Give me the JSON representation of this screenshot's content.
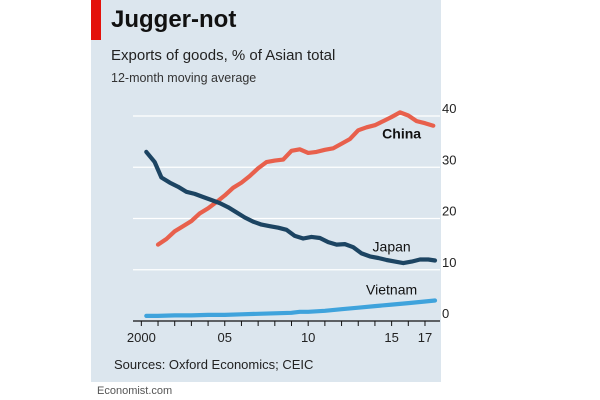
{
  "header": {
    "title": "Jugger-not",
    "subtitle": "Exports of goods, % of Asian total",
    "note": "12-month moving average"
  },
  "footer": {
    "source": "Sources: Oxford Economics; CEIC",
    "credit": "Economist.com"
  },
  "colors": {
    "background": "#dce6ee",
    "china": "#e8604c",
    "japan": "#1c4462",
    "vietnam": "#3fa3dc",
    "accent": "#e3120b"
  },
  "chart_data": {
    "type": "line",
    "title": "Jugger-not",
    "subtitle": "Exports of goods, % of Asian total",
    "xlabel": "",
    "ylabel": "",
    "xlim": [
      1999.5,
      2017.9
    ],
    "ylim": [
      0,
      40
    ],
    "grid": true,
    "y_axis_side": "right",
    "y_ticks": [
      0,
      10,
      20,
      30,
      40
    ],
    "x_ticks": [
      {
        "value": 2000,
        "label": "2000"
      },
      {
        "value": 2005,
        "label": "05"
      },
      {
        "value": 2010,
        "label": "10"
      },
      {
        "value": 2015,
        "label": "15"
      },
      {
        "value": 2017,
        "label": "17"
      }
    ],
    "series": [
      {
        "name": "China",
        "color": "#e8604c",
        "bold_label": true,
        "label_anchor": 2015.6,
        "x": [
          2001.0,
          2001.5,
          2002,
          2002.5,
          2003,
          2003.5,
          2004,
          2004.5,
          2005,
          2005.5,
          2006,
          2006.5,
          2007,
          2007.5,
          2008,
          2008.5,
          2009,
          2009.5,
          2010,
          2010.5,
          2011,
          2011.5,
          2012,
          2012.5,
          2013,
          2013.5,
          2014,
          2014.5,
          2015,
          2015.5,
          2016,
          2016.5,
          2017,
          2017.5
        ],
        "values": [
          14.9,
          16.0,
          17.5,
          18.5,
          19.5,
          21.0,
          22.0,
          23.2,
          24.5,
          26.0,
          27.0,
          28.3,
          29.8,
          31.0,
          31.3,
          31.5,
          33.2,
          33.5,
          32.8,
          33.0,
          33.4,
          33.7,
          34.6,
          35.5,
          37.2,
          37.8,
          38.2,
          39.0,
          39.8,
          40.7,
          40.1,
          39.0,
          38.6,
          38.1
        ]
      },
      {
        "name": "Japan",
        "color": "#1c4462",
        "bold_label": false,
        "label_anchor": 2015.0,
        "x": [
          2000.3,
          2000.8,
          2001.2,
          2001.7,
          2002.2,
          2002.7,
          2003.2,
          2003.7,
          2004.2,
          2004.7,
          2005.2,
          2005.7,
          2006.2,
          2006.7,
          2007.2,
          2007.7,
          2008.2,
          2008.7,
          2009.2,
          2009.7,
          2010.2,
          2010.7,
          2011.2,
          2011.7,
          2012.2,
          2012.7,
          2013.2,
          2013.7,
          2014.2,
          2014.7,
          2015.2,
          2015.7,
          2016.2,
          2016.7,
          2017.2,
          2017.6
        ],
        "values": [
          33.0,
          31.0,
          28.0,
          27.0,
          26.2,
          25.2,
          24.8,
          24.2,
          23.6,
          23.0,
          22.2,
          21.2,
          20.2,
          19.4,
          18.8,
          18.5,
          18.2,
          17.8,
          16.6,
          16.1,
          16.4,
          16.2,
          15.4,
          14.9,
          15.0,
          14.4,
          13.2,
          12.6,
          12.3,
          11.9,
          11.6,
          11.3,
          11.6,
          12.0,
          12.0,
          11.8
        ]
      },
      {
        "name": "Vietnam",
        "color": "#3fa3dc",
        "bold_label": false,
        "label_anchor": 2015.0,
        "x": [
          2000.3,
          2001,
          2002,
          2003,
          2004,
          2005,
          2006,
          2007,
          2008,
          2009,
          2009.5,
          2010,
          2011,
          2012,
          2013,
          2014,
          2015,
          2016,
          2017,
          2017.6
        ],
        "values": [
          1.0,
          1.0,
          1.1,
          1.1,
          1.2,
          1.2,
          1.3,
          1.4,
          1.5,
          1.6,
          1.8,
          1.8,
          2.0,
          2.3,
          2.6,
          2.9,
          3.2,
          3.5,
          3.8,
          4.0
        ]
      }
    ]
  }
}
